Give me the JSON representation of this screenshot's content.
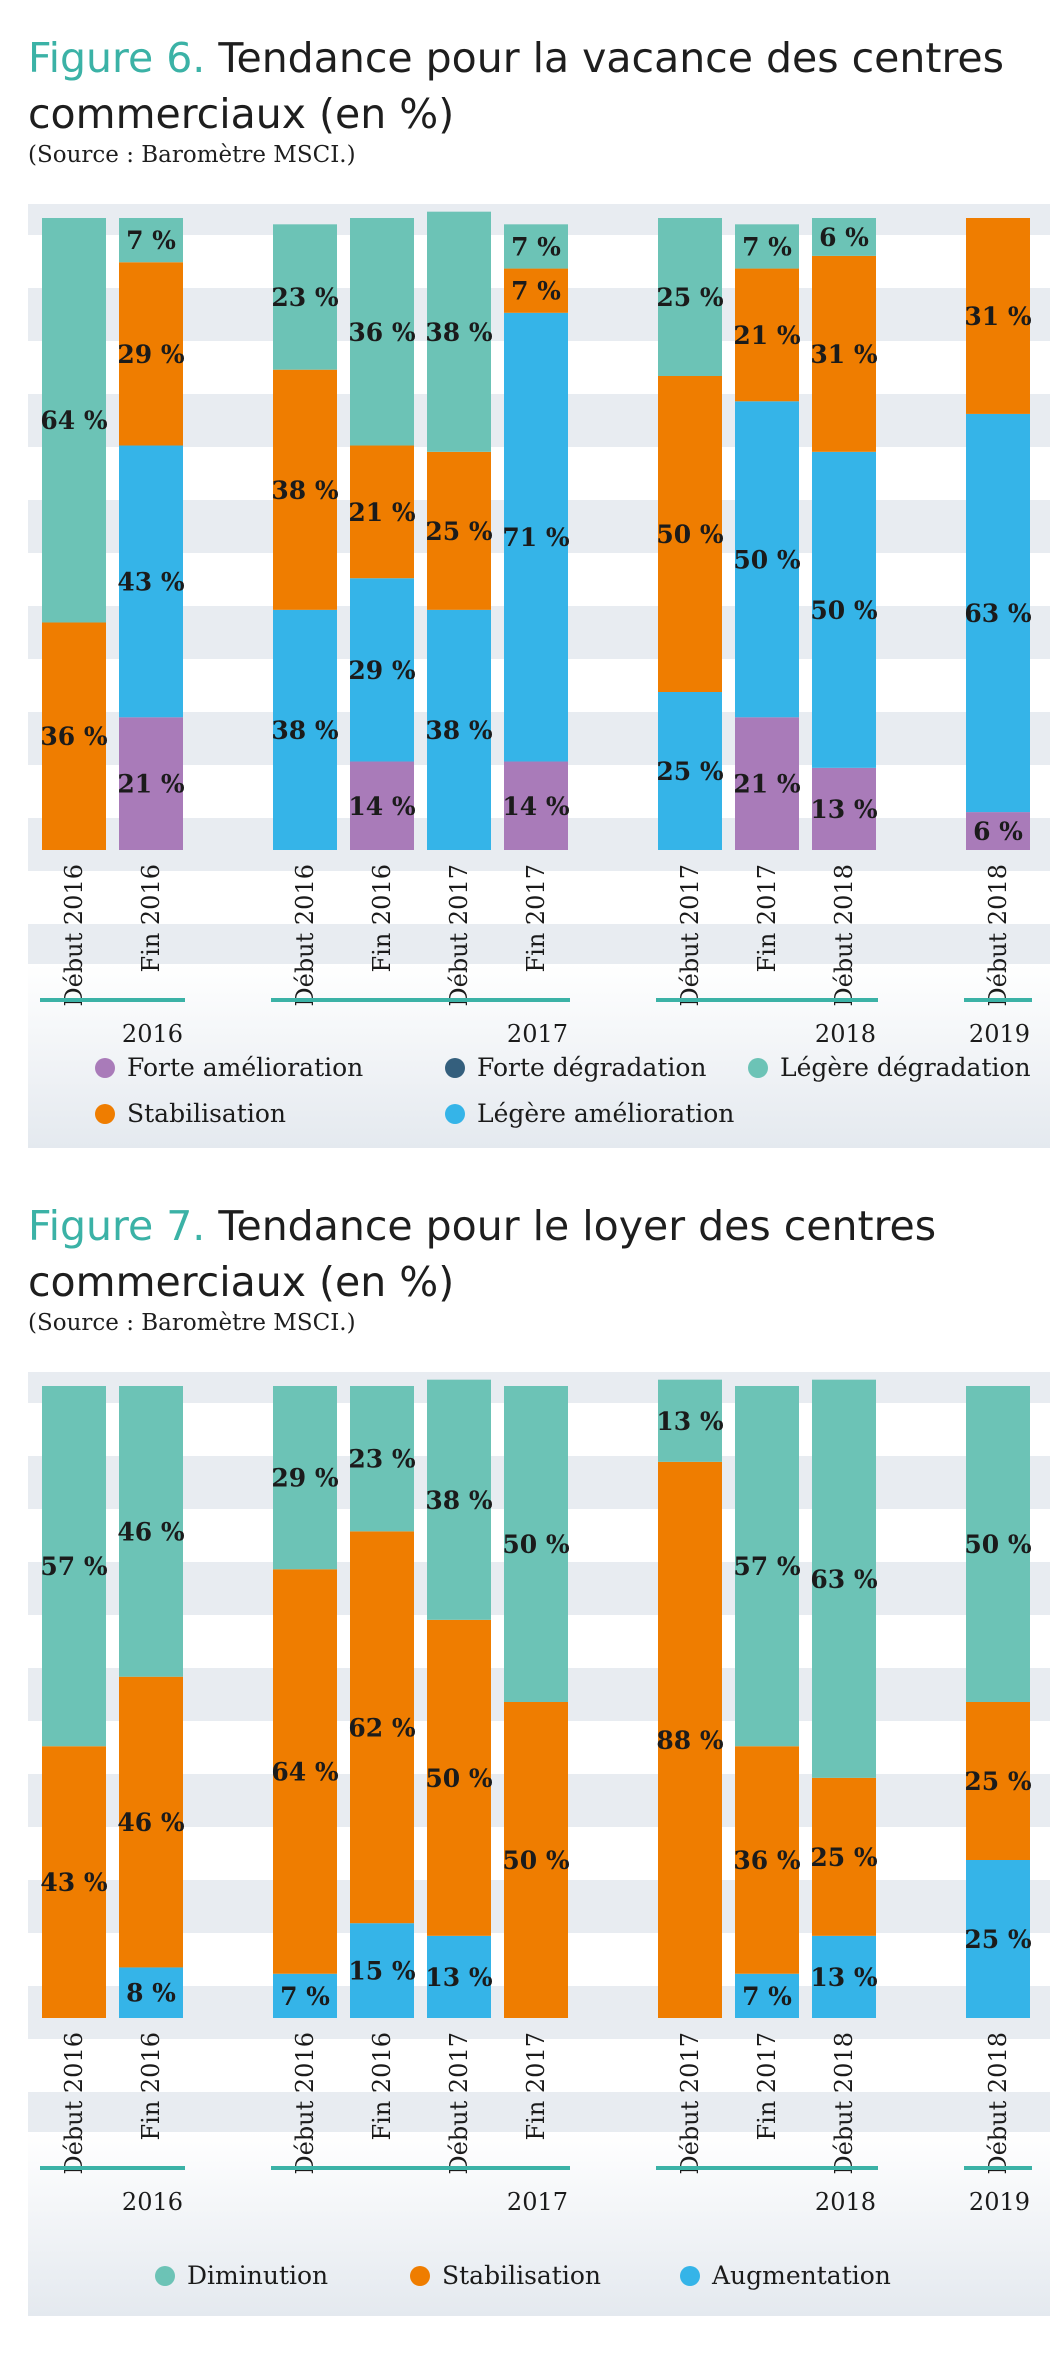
{
  "figures": [
    {
      "number": "Figure 6.",
      "title_line1": "Tendance pour la vacance des centres",
      "title_line2": "commerciaux (en %)",
      "source": "(Source : Baromètre MSCI.)"
    },
    {
      "number": "Figure 7.",
      "title_line1": "Tendance pour le loyer des centres",
      "title_line2": "commerciaux (en %)",
      "source": "(Source : Baromètre MSCI.)"
    }
  ],
  "colors": {
    "forte_amelioration": "#a97bb9",
    "forte_degradation": "#345f7d",
    "legere_degradation": "#6cc3b6",
    "stabilisation": "#ef7d00",
    "legere_amelioration": "#35b4e8",
    "diminution": "#6cc3b6",
    "augmentation": "#35b4e8",
    "teal_line": "#3bb2a6"
  },
  "chart_data": [
    {
      "type": "bar",
      "stacked": true,
      "unit": "%",
      "categories": [
        "Début 2016",
        "Fin 2016",
        "Début 2016",
        "Fin 2016",
        "Début 2017",
        "Fin 2017",
        "Début 2017",
        "Fin 2017",
        "Début 2018",
        "Début 2018"
      ],
      "groups": [
        {
          "label": "2016",
          "members": [
            0,
            1
          ]
        },
        {
          "label": "2017",
          "members": [
            2,
            3,
            4,
            5
          ]
        },
        {
          "label": "2018",
          "members": [
            6,
            7,
            8
          ]
        },
        {
          "label": "2019",
          "members": [
            9
          ]
        }
      ],
      "series": [
        {
          "name": "Forte amélioration",
          "color": "#a97bb9",
          "values": [
            0,
            21,
            0,
            14,
            0,
            14,
            0,
            21,
            13,
            6
          ]
        },
        {
          "name": "Légère amélioration",
          "color": "#35b4e8",
          "values": [
            0,
            43,
            38,
            29,
            38,
            71,
            25,
            50,
            50,
            63
          ]
        },
        {
          "name": "Stabilisation",
          "color": "#ef7d00",
          "values": [
            36,
            29,
            38,
            21,
            25,
            7,
            50,
            21,
            31,
            31
          ]
        },
        {
          "name": "Légère dégradation",
          "color": "#6cc3b6",
          "values": [
            64,
            7,
            23,
            36,
            38,
            7,
            25,
            7,
            6,
            0
          ]
        }
      ],
      "legend": [
        {
          "name": "Forte amélioration",
          "color": "#a97bb9"
        },
        {
          "name": "Forte dégradation",
          "color": "#345f7d"
        },
        {
          "name": "Légère dégradation",
          "color": "#6cc3b6"
        },
        {
          "name": "Stabilisation",
          "color": "#ef7d00"
        },
        {
          "name": "Légère amélioration",
          "color": "#35b4e8"
        }
      ],
      "legend_placement": "bottom",
      "ylim": [
        0,
        100
      ]
    },
    {
      "type": "bar",
      "stacked": true,
      "unit": "%",
      "categories": [
        "Début 2016",
        "Fin 2016",
        "Début 2016",
        "Fin 2016",
        "Début 2017",
        "Fin 2017",
        "Début 2017",
        "Fin 2017",
        "Début 2018",
        "Début 2018"
      ],
      "groups": [
        {
          "label": "2016",
          "members": [
            0,
            1
          ]
        },
        {
          "label": "2017",
          "members": [
            2,
            3,
            4,
            5
          ]
        },
        {
          "label": "2018",
          "members": [
            6,
            7,
            8
          ]
        },
        {
          "label": "2019",
          "members": [
            9
          ]
        }
      ],
      "series": [
        {
          "name": "Augmentation",
          "color": "#35b4e8",
          "values": [
            0,
            8,
            7,
            15,
            13,
            0,
            0,
            7,
            13,
            25
          ]
        },
        {
          "name": "Stabilisation",
          "color": "#ef7d00",
          "values": [
            43,
            46,
            64,
            62,
            50,
            50,
            88,
            36,
            25,
            25
          ]
        },
        {
          "name": "Diminution",
          "color": "#6cc3b6",
          "values": [
            57,
            46,
            29,
            23,
            38,
            50,
            13,
            57,
            63,
            50
          ]
        }
      ],
      "legend": [
        {
          "name": "Diminution",
          "color": "#6cc3b6"
        },
        {
          "name": "Stabilisation",
          "color": "#ef7d00"
        },
        {
          "name": "Augmentation",
          "color": "#35b4e8"
        }
      ],
      "legend_placement": "bottom",
      "ylim": [
        0,
        100
      ]
    }
  ]
}
